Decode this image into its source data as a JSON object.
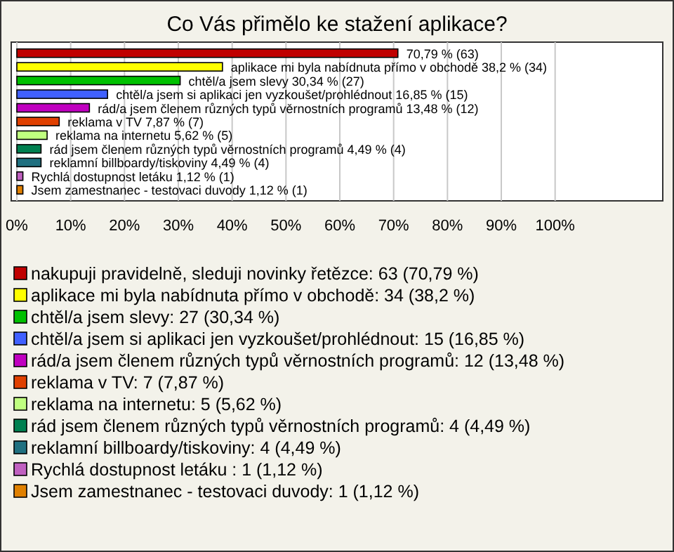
{
  "chart_data": {
    "type": "bar",
    "orientation": "horizontal",
    "title": "Co Vás přimělo ke stažení aplikace?",
    "categories": [
      null,
      null,
      null,
      null,
      null,
      null,
      null,
      null,
      null,
      null,
      null
    ],
    "series": [
      {
        "name": "nakupuji pravidelně, sleduji novinky řetězce: 63 (70,79 %)",
        "color": "#c00000",
        "values": [
          70.79,
          null,
          null,
          null,
          null,
          null,
          null,
          null,
          null,
          null,
          null
        ],
        "value_labels": [
          "70,79 % (63)",
          null,
          null,
          null,
          null,
          null,
          null,
          null,
          null,
          null,
          null
        ]
      },
      {
        "name": "aplikace mi byla nabídnuta přímo v obchodě: 34 (38,2 %)",
        "color": "#ffff00",
        "values": [
          null,
          38.2,
          null,
          null,
          null,
          null,
          null,
          null,
          null,
          null,
          null
        ],
        "value_labels": [
          null,
          "aplikace mi byla nabídnuta přímo v obchodě 38,2 % (34)",
          null,
          null,
          null,
          null,
          null,
          null,
          null,
          null,
          null
        ]
      },
      {
        "name": "chtěl/a jsem slevy: 27 (30,34 %)",
        "color": "#00c000",
        "values": [
          null,
          null,
          30.34,
          null,
          null,
          null,
          null,
          null,
          null,
          null,
          null
        ],
        "value_labels": [
          null,
          null,
          "chtěl/a jsem slevy 30,34 % (27)",
          null,
          null,
          null,
          null,
          null,
          null,
          null,
          null
        ]
      },
      {
        "name": "chtěl/a jsem si aplikaci jen vyzkoušet/prohlédnout: 15 (16,85 %)",
        "color": "#4060ff",
        "values": [
          null,
          null,
          null,
          16.85,
          null,
          null,
          null,
          null,
          null,
          null,
          null
        ],
        "value_labels": [
          null,
          null,
          null,
          "chtěl/a jsem si aplikaci jen vyzkoušet/prohlédnout 16,85 % (15)",
          null,
          null,
          null,
          null,
          null,
          null,
          null
        ]
      },
      {
        "name": "rád/a jsem členem různých typů věrnostních programů: 12 (13,48 %)",
        "color": "#c000c0",
        "values": [
          null,
          null,
          null,
          null,
          13.48,
          null,
          null,
          null,
          null,
          null,
          null
        ],
        "value_labels": [
          null,
          null,
          null,
          null,
          "rád/a jsem členem různých typů věrnostních programů 13,48 % (12)",
          null,
          null,
          null,
          null,
          null,
          null
        ]
      },
      {
        "name": "reklama v TV: 7 (7,87 %)",
        "color": "#e04000",
        "values": [
          null,
          null,
          null,
          null,
          null,
          7.87,
          null,
          null,
          null,
          null,
          null
        ],
        "value_labels": [
          null,
          null,
          null,
          null,
          null,
          "reklama v TV 7,87 % (7)",
          null,
          null,
          null,
          null,
          null
        ]
      },
      {
        "name": "reklama na internetu: 5 (5,62 %)",
        "color": "#c0ff80",
        "values": [
          null,
          null,
          null,
          null,
          null,
          null,
          5.62,
          null,
          null,
          null,
          null
        ],
        "value_labels": [
          null,
          null,
          null,
          null,
          null,
          null,
          "reklama na internetu 5,62 % (5)",
          null,
          null,
          null,
          null
        ]
      },
      {
        "name": "rád jsem členem různých typů věrnostních programů: 4 (4,49 %)",
        "color": "#008050",
        "values": [
          null,
          null,
          null,
          null,
          null,
          null,
          null,
          4.49,
          null,
          null,
          null
        ],
        "value_labels": [
          null,
          null,
          null,
          null,
          null,
          null,
          null,
          "rád jsem členem různých typů věrnostních programů 4,49 % (4)",
          null,
          null,
          null
        ]
      },
      {
        "name": "reklamní billboardy/tiskoviny: 4 (4,49 %)",
        "color": "#207080",
        "values": [
          null,
          null,
          null,
          null,
          null,
          null,
          null,
          null,
          4.49,
          null,
          null
        ],
        "value_labels": [
          null,
          null,
          null,
          null,
          null,
          null,
          null,
          null,
          "reklamní billboardy/tiskoviny 4,49 % (4)",
          null,
          null
        ]
      },
      {
        "name": "Rychlá dostupnost letáku : 1 (1,12 %)",
        "color": "#c060c0",
        "values": [
          null,
          null,
          null,
          null,
          null,
          null,
          null,
          null,
          null,
          1.12,
          null
        ],
        "value_labels": [
          null,
          null,
          null,
          null,
          null,
          null,
          null,
          null,
          null,
          "Rychlá dostupnost letáku  1,12 % (1)",
          null
        ]
      },
      {
        "name": "Jsem zamestnanec - testovaci duvody: 1 (1,12 %)",
        "color": "#e08000",
        "values": [
          null,
          null,
          null,
          null,
          null,
          null,
          null,
          null,
          null,
          null,
          1.12
        ],
        "value_labels": [
          null,
          null,
          null,
          null,
          null,
          null,
          null,
          null,
          null,
          null,
          "Jsem zamestnanec - testovaci duvody 1,12 % (1)"
        ]
      }
    ],
    "xlim": [
      0,
      120
    ],
    "xticks": [
      {
        "value": 0,
        "label": "0%"
      },
      {
        "value": 10,
        "label": "10%"
      },
      {
        "value": 20,
        "label": "20%"
      },
      {
        "value": 30,
        "label": "30%"
      },
      {
        "value": 40,
        "label": "40%"
      },
      {
        "value": 50,
        "label": "50%"
      },
      {
        "value": 60,
        "label": "60%"
      },
      {
        "value": 70,
        "label": "70%"
      },
      {
        "value": 80,
        "label": "80%"
      },
      {
        "value": 90,
        "label": "90%"
      },
      {
        "value": 100,
        "label": "100%"
      }
    ],
    "grid": "x",
    "tick_labels": "x",
    "legend": "bottom"
  }
}
